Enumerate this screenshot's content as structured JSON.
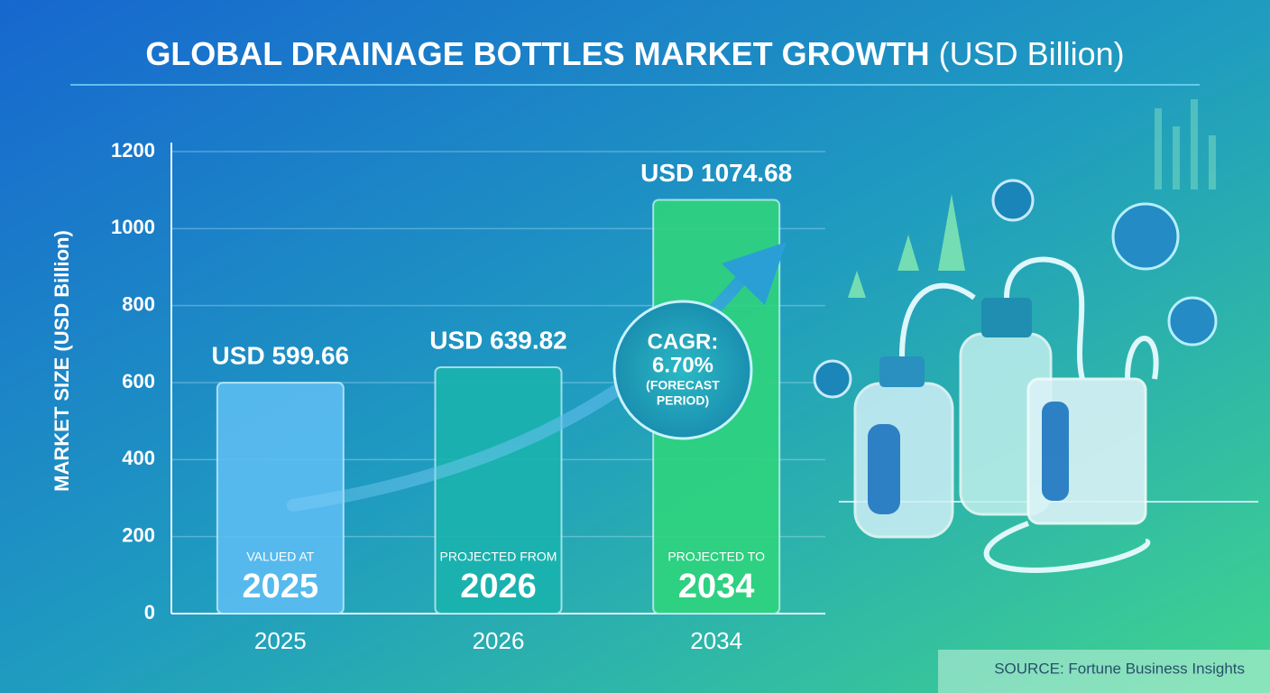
{
  "chart_data": {
    "type": "bar",
    "title": "GLOBAL DRAINAGE BOTTLES MARKET GROWTH",
    "title_unit": "(USD Billion)",
    "y_label": "MARKET SIZE (USD Billion)",
    "categories": [
      "2025",
      "2026",
      "2034"
    ],
    "values": [
      599.66,
      639.82,
      1074.68
    ],
    "value_labels": [
      "USD 599.66",
      "USD 639.82",
      "USD 1074.68"
    ],
    "bar_notes": [
      "VALUED AT",
      "PROJECTED FROM",
      "PROJECTED TO"
    ],
    "colors": [
      "#5cbdf2",
      "#1ab3ad",
      "#2fd47c"
    ],
    "ylim": [
      0,
      1200
    ],
    "yticks": [
      0,
      200,
      400,
      600,
      800,
      1000,
      1200
    ],
    "grid": true,
    "annotation": {
      "label": "CAGR:",
      "value": "6.70%",
      "note": "(FORECAST",
      "note2": "PERIOD)"
    },
    "source": "SOURCE: Fortune Business Insights"
  }
}
